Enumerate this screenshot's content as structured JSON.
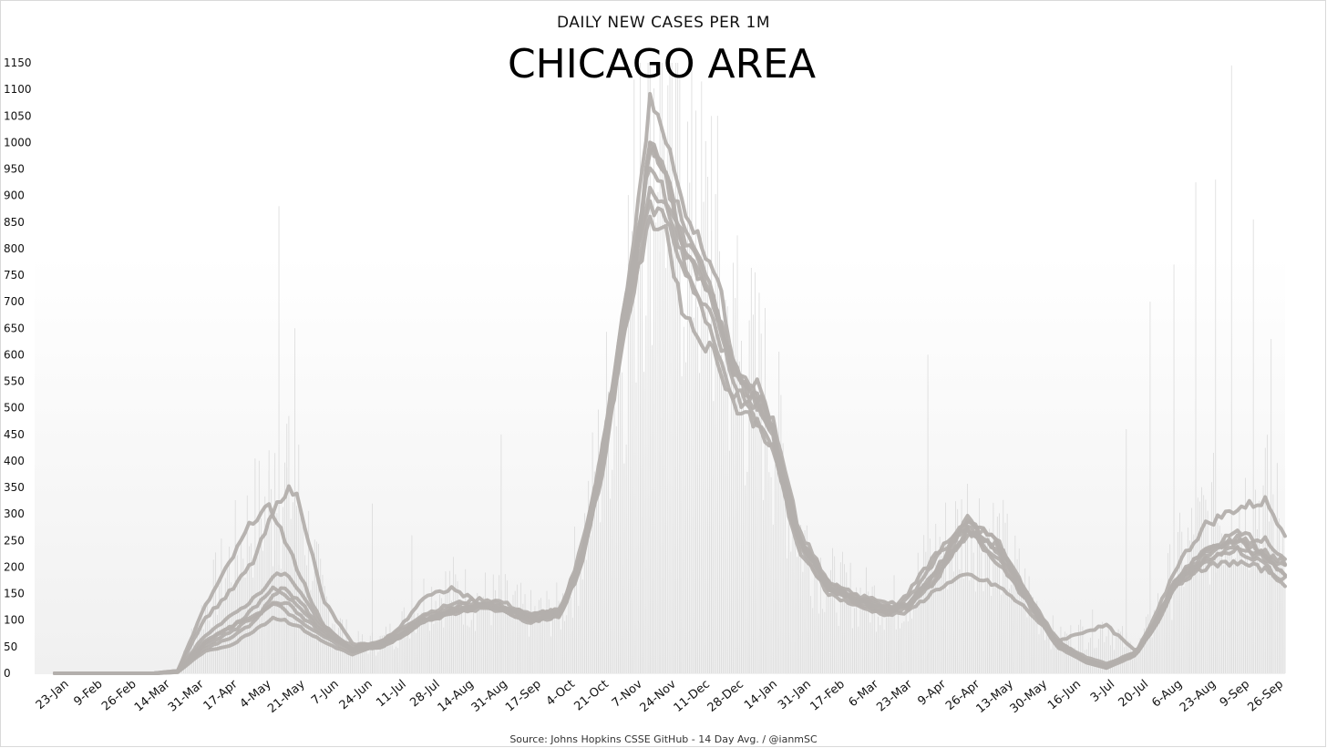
{
  "chart_data": {
    "type": "line",
    "subtitle": "DAILY NEW CASES PER 1M",
    "title": "CHICAGO AREA",
    "source": "Source: Johns Hopkins CSSE GitHub - 14 Day Avg. / @ianmSC",
    "xlabel": "",
    "ylabel": "",
    "ylim": [
      0,
      1150
    ],
    "yticks": [
      0,
      50,
      100,
      150,
      200,
      250,
      300,
      350,
      400,
      450,
      500,
      550,
      600,
      650,
      700,
      750,
      800,
      850,
      900,
      950,
      1000,
      1050,
      1100,
      1150
    ],
    "x_tick_labels": [
      "23-Jan",
      "9-Feb",
      "26-Feb",
      "14-Mar",
      "31-Mar",
      "17-Apr",
      "4-May",
      "21-May",
      "7-Jun",
      "24-Jun",
      "11-Jul",
      "28-Jul",
      "14-Aug",
      "31-Aug",
      "17-Sep",
      "4-Oct",
      "21-Oct",
      "7-Nov",
      "24-Nov",
      "11-Dec",
      "28-Dec",
      "14-Jan",
      "31-Jan",
      "17-Feb",
      "6-Mar",
      "23-Mar",
      "9-Apr",
      "26-Apr",
      "13-May",
      "30-May",
      "16-Jun",
      "3-Jul",
      "20-Jul",
      "6-Aug",
      "23-Aug",
      "9-Sep",
      "26-Sep"
    ],
    "x_tick_index": [
      0,
      17,
      34,
      51,
      68,
      85,
      102,
      119,
      136,
      153,
      170,
      187,
      204,
      221,
      238,
      255,
      272,
      289,
      306,
      323,
      340,
      357,
      374,
      391,
      408,
      425,
      442,
      459,
      476,
      493,
      510,
      527,
      544,
      561,
      578,
      595,
      612
    ],
    "day_count": 621,
    "grid": false,
    "legend": "none",
    "line_color": "#b3afac",
    "bar_color": "#d6d6d6",
    "series": [
      {
        "x": [
          0,
          50,
          62,
          75,
          90,
          100,
          108,
          112,
          116,
          122,
          135,
          150,
          165,
          175,
          185,
          200,
          215,
          225,
          240,
          255,
          265,
          275,
          285,
          293,
          300,
          308,
          315,
          323,
          333,
          343,
          355,
          362,
          375,
          390,
          405,
          420,
          430,
          445,
          460,
          475,
          490,
          505,
          520,
          530,
          545,
          555,
          565,
          580,
          595,
          610,
          621
        ],
        "values": [
          0,
          0,
          5,
          120,
          220,
          290,
          310,
          290,
          250,
          200,
          90,
          45,
          60,
          85,
          110,
          130,
          140,
          135,
          110,
          120,
          220,
          400,
          650,
          800,
          1000,
          950,
          820,
          750,
          700,
          550,
          510,
          460,
          260,
          160,
          130,
          115,
          150,
          230,
          275,
          215,
          140,
          60,
          30,
          18,
          40,
          100,
          180,
          230,
          250,
          220,
          210
        ]
      },
      {
        "x": [
          0,
          50,
          62,
          75,
          90,
          100,
          110,
          115,
          119,
          123,
          135,
          150,
          165,
          175,
          185,
          200,
          215,
          225,
          240,
          255,
          265,
          275,
          285,
          293,
          300,
          306,
          315,
          323,
          333,
          343,
          355,
          362,
          375,
          390,
          405,
          420,
          430,
          445,
          460,
          475,
          490,
          505,
          520,
          530,
          545,
          555,
          565,
          580,
          595,
          610,
          621
        ],
        "values": [
          0,
          0,
          5,
          100,
          160,
          210,
          300,
          340,
          345,
          330,
          140,
          55,
          55,
          75,
          100,
          120,
          130,
          125,
          100,
          110,
          210,
          380,
          630,
          850,
          1080,
          1040,
          900,
          830,
          760,
          580,
          540,
          470,
          270,
          170,
          140,
          110,
          140,
          220,
          285,
          250,
          150,
          65,
          20,
          10,
          40,
          110,
          200,
          280,
          310,
          325,
          260
        ]
      },
      {
        "x": [
          0,
          50,
          62,
          75,
          90,
          100,
          110,
          116,
          122,
          135,
          150,
          165,
          175,
          185,
          200,
          215,
          225,
          240,
          255,
          265,
          275,
          285,
          293,
          300,
          308,
          315,
          323,
          333,
          343,
          355,
          362,
          375,
          390,
          405,
          420,
          430,
          445,
          460,
          475,
          490,
          505,
          520,
          530,
          545,
          555,
          565,
          580,
          595,
          610,
          621
        ],
        "values": [
          0,
          0,
          3,
          60,
          90,
          120,
          165,
          150,
          125,
          80,
          45,
          50,
          70,
          95,
          115,
          125,
          120,
          95,
          110,
          200,
          360,
          600,
          780,
          920,
          880,
          800,
          720,
          650,
          540,
          500,
          440,
          250,
          165,
          140,
          125,
          130,
          200,
          285,
          230,
          140,
          55,
          25,
          15,
          35,
          95,
          170,
          220,
          260,
          230,
          195
        ]
      },
      {
        "x": [
          0,
          50,
          62,
          75,
          90,
          100,
          110,
          116,
          122,
          135,
          150,
          165,
          175,
          185,
          200,
          215,
          225,
          240,
          255,
          265,
          275,
          285,
          293,
          300,
          308,
          315,
          323,
          333,
          343,
          355,
          362,
          375,
          390,
          405,
          420,
          430,
          445,
          460,
          475,
          490,
          505,
          520,
          530,
          545,
          555,
          565,
          580,
          595,
          610,
          621
        ],
        "values": [
          0,
          0,
          3,
          50,
          80,
          105,
          130,
          120,
          100,
          70,
          40,
          55,
          75,
          100,
          115,
          130,
          125,
          105,
          115,
          205,
          390,
          640,
          810,
          960,
          900,
          830,
          780,
          690,
          560,
          520,
          450,
          260,
          170,
          145,
          135,
          125,
          185,
          270,
          210,
          135,
          50,
          20,
          12,
          38,
          100,
          175,
          215,
          240,
          215,
          185
        ]
      },
      {
        "x": [
          0,
          50,
          62,
          75,
          90,
          100,
          110,
          116,
          122,
          135,
          150,
          165,
          175,
          185,
          200,
          215,
          225,
          240,
          255,
          265,
          275,
          285,
          293,
          300,
          308,
          315,
          323,
          333,
          343,
          355,
          362,
          375,
          390,
          405,
          420,
          430,
          445,
          460,
          475,
          490,
          505,
          520,
          530,
          545,
          555,
          565,
          580,
          595,
          610,
          621
        ],
        "values": [
          0,
          0,
          2,
          40,
          55,
          80,
          105,
          100,
          90,
          60,
          35,
          55,
          80,
          105,
          125,
          135,
          130,
          110,
          120,
          210,
          370,
          610,
          740,
          850,
          840,
          700,
          640,
          600,
          500,
          470,
          420,
          240,
          150,
          125,
          110,
          115,
          160,
          185,
          165,
          120,
          60,
          80,
          90,
          40,
          90,
          170,
          200,
          210,
          195,
          175
        ]
      },
      {
        "x": [
          0,
          50,
          62,
          75,
          90,
          100,
          110,
          116,
          122,
          135,
          150,
          165,
          175,
          185,
          200,
          215,
          225,
          240,
          255,
          265,
          275,
          285,
          293,
          300,
          308,
          315,
          323,
          333,
          343,
          355,
          362,
          375,
          390,
          405,
          420,
          430,
          445,
          460,
          475,
          490,
          505,
          520,
          530,
          545,
          555,
          565,
          580,
          595,
          610,
          621
        ],
        "values": [
          0,
          0,
          3,
          70,
          110,
          140,
          180,
          190,
          160,
          90,
          50,
          60,
          90,
          140,
          160,
          130,
          120,
          110,
          115,
          230,
          400,
          620,
          760,
          880,
          860,
          780,
          720,
          610,
          520,
          470,
          420,
          230,
          160,
          135,
          120,
          130,
          190,
          265,
          240,
          150,
          60,
          25,
          12,
          40,
          100,
          180,
          230,
          265,
          250,
          205
        ]
      },
      {
        "x": [
          0,
          50,
          62,
          75,
          90,
          100,
          110,
          116,
          122,
          135,
          150,
          165,
          175,
          185,
          200,
          215,
          225,
          240,
          255,
          265,
          275,
          285,
          293,
          300,
          308,
          315,
          323,
          333,
          343,
          355,
          362,
          375,
          390,
          405,
          420,
          430,
          445,
          460,
          475,
          490,
          505,
          520,
          530,
          545,
          555,
          565,
          580,
          595,
          610,
          621
        ],
        "values": [
          0,
          0,
          2,
          55,
          90,
          110,
          130,
          135,
          115,
          75,
          45,
          52,
          72,
          98,
          118,
          128,
          122,
          100,
          112,
          205,
          375,
          615,
          790,
          990,
          940,
          820,
          760,
          680,
          570,
          520,
          455,
          255,
          165,
          140,
          125,
          128,
          195,
          290,
          250,
          145,
          55,
          22,
          14,
          36,
          98,
          172,
          225,
          250,
          225,
          180
        ]
      },
      {
        "x": [
          0,
          50,
          62,
          75,
          90,
          100,
          110,
          116,
          122,
          135,
          150,
          165,
          175,
          185,
          200,
          215,
          225,
          240,
          255,
          265,
          275,
          285,
          293,
          300,
          308,
          315,
          323,
          333,
          343,
          355,
          362,
          375,
          390,
          405,
          420,
          430,
          445,
          460,
          475,
          490,
          505,
          520,
          530,
          545,
          555,
          565,
          580,
          595,
          610,
          621
        ],
        "values": [
          0,
          0,
          3,
          45,
          70,
          95,
          150,
          160,
          140,
          85,
          42,
          50,
          70,
          95,
          112,
          122,
          118,
          98,
          108,
          198,
          365,
          600,
          770,
          1000,
          930,
          870,
          800,
          700,
          560,
          500,
          460,
          250,
          160,
          132,
          118,
          122,
          180,
          275,
          235,
          138,
          52,
          20,
          10,
          34,
          92,
          165,
          210,
          235,
          205,
          160
        ]
      }
    ],
    "daily_spikes": [
      {
        "x": 108,
        "value": 420
      },
      {
        "x": 111,
        "value": 415
      },
      {
        "x": 113,
        "value": 880
      },
      {
        "x": 117,
        "value": 470
      },
      {
        "x": 121,
        "value": 650
      },
      {
        "x": 160,
        "value": 320
      },
      {
        "x": 180,
        "value": 260
      },
      {
        "x": 225,
        "value": 450
      },
      {
        "x": 295,
        "value": 1150
      },
      {
        "x": 300,
        "value": 1150
      },
      {
        "x": 305,
        "value": 1150
      },
      {
        "x": 315,
        "value": 1120
      },
      {
        "x": 323,
        "value": 1060
      },
      {
        "x": 331,
        "value": 1050
      },
      {
        "x": 344,
        "value": 825
      },
      {
        "x": 350,
        "value": 665
      },
      {
        "x": 356,
        "value": 640
      },
      {
        "x": 440,
        "value": 600
      },
      {
        "x": 540,
        "value": 460
      },
      {
        "x": 552,
        "value": 700
      },
      {
        "x": 564,
        "value": 770
      },
      {
        "x": 575,
        "value": 925
      },
      {
        "x": 585,
        "value": 930
      },
      {
        "x": 593,
        "value": 1145
      },
      {
        "x": 604,
        "value": 855
      },
      {
        "x": 613,
        "value": 630
      }
    ]
  }
}
